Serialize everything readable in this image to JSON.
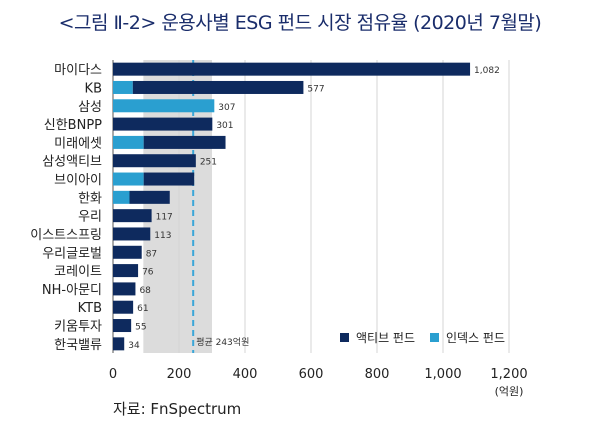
{
  "title": "<그림 Ⅱ-2> 운용사별 ESG 펀드 시장 점유율 (2020년 7월말)",
  "source": "자료: FnSpectrum",
  "colors": {
    "active": "#0e2a5e",
    "index": "#2a9fd0",
    "band": "#dcdcdc",
    "avg_line": "#3aa6d8",
    "grid": "#d4d4d4"
  },
  "chart_data": {
    "type": "bar",
    "orientation": "horizontal",
    "stacked": true,
    "categories": [
      "마이다스",
      "KB",
      "삼성",
      "신한BNPP",
      "미래에셋",
      "삼성액티브",
      "브이아이",
      "한화",
      "우리",
      "이스트스프링",
      "우리글로벌",
      "코레이트",
      "NH-아문디",
      "KTB",
      "키움투자",
      "한국밸류"
    ],
    "series": [
      {
        "name": "액티브 펀드",
        "color": "#0e2a5e",
        "values": [
          1082,
          517,
          0,
          301,
          248,
          251,
          153,
          122,
          117,
          113,
          87,
          76,
          68,
          61,
          55,
          34
        ]
      },
      {
        "name": "인덱스 펀드",
        "color": "#2a9fd0",
        "values": [
          0,
          60,
          307,
          0,
          93,
          0,
          93,
          50,
          0,
          0,
          0,
          0,
          0,
          0,
          0,
          0
        ]
      }
    ],
    "totals": [
      1082,
      577,
      307,
      301,
      null,
      251,
      null,
      null,
      117,
      113,
      87,
      76,
      68,
      61,
      55,
      34
    ],
    "xlim": [
      0,
      1200
    ],
    "xticks": [
      "0",
      "200",
      "400",
      "600",
      "800",
      "1,000",
      "1,200"
    ],
    "xunit": "(억원)",
    "average": {
      "value": 243,
      "label": "평균 243억원"
    },
    "band": [
      92,
      300
    ],
    "legend_position": "bottom-right"
  }
}
